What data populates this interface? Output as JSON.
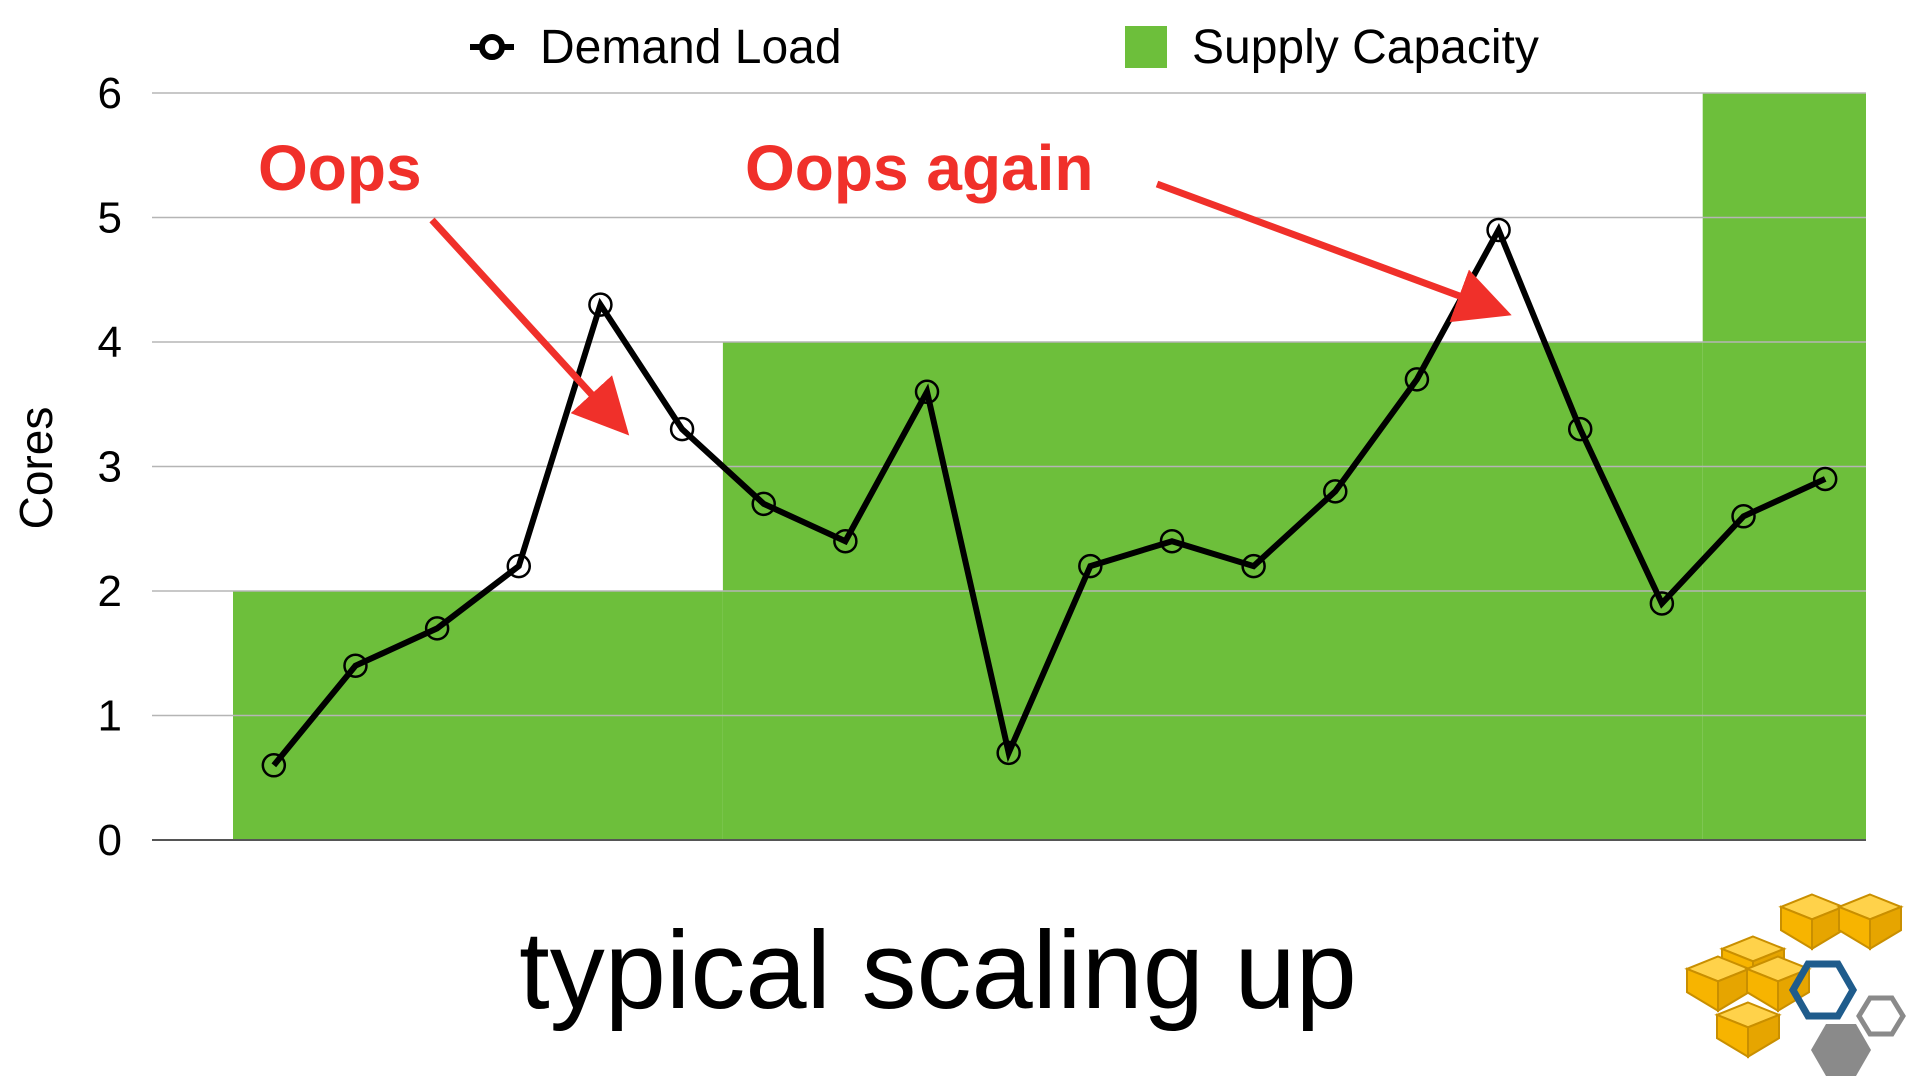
{
  "chart_data": {
    "type": "line",
    "x": [
      1,
      2,
      3,
      4,
      5,
      6,
      7,
      8,
      9,
      10,
      11,
      12,
      13,
      14,
      15,
      16,
      17,
      18,
      19,
      20
    ],
    "ylabel": "Cores",
    "xlabel": "",
    "ylim": [
      0,
      6
    ],
    "y_ticks": [
      "0",
      "1",
      "2",
      "3",
      "4",
      "5",
      "6"
    ],
    "grid": true,
    "legend_position": "top",
    "series": [
      {
        "name": "Demand Load",
        "type": "line",
        "color": "#000000",
        "values": [
          0.6,
          1.4,
          1.7,
          2.2,
          4.3,
          3.3,
          2.7,
          2.4,
          3.6,
          0.7,
          2.2,
          2.4,
          2.2,
          2.8,
          3.7,
          4.9,
          3.3,
          1.9,
          2.6,
          2.9
        ]
      },
      {
        "name": "Supply Capacity",
        "type": "step-area",
        "color": "#6dbf3b",
        "steps": [
          {
            "x_from": 0.5,
            "x_to": 6.5,
            "value": 2
          },
          {
            "x_from": 6.5,
            "x_to": 18.5,
            "value": 4
          },
          {
            "x_from": 18.5,
            "x_to": 20.5,
            "value": 6
          }
        ]
      }
    ],
    "annotations": [
      {
        "text": "Oops",
        "color": "#f0302a",
        "points_to_index": 5
      },
      {
        "text": "Oops again",
        "color": "#f0302a",
        "points_to_index": 16
      }
    ]
  },
  "caption": "typical scaling up",
  "logo": {
    "icon_name": "aws-cubes-logo",
    "colors": {
      "cube": "#f7b400",
      "cube_edge": "#c98f00",
      "hex_blue": "#1f5c8c",
      "hex_gray": "#8a8a8a"
    }
  }
}
